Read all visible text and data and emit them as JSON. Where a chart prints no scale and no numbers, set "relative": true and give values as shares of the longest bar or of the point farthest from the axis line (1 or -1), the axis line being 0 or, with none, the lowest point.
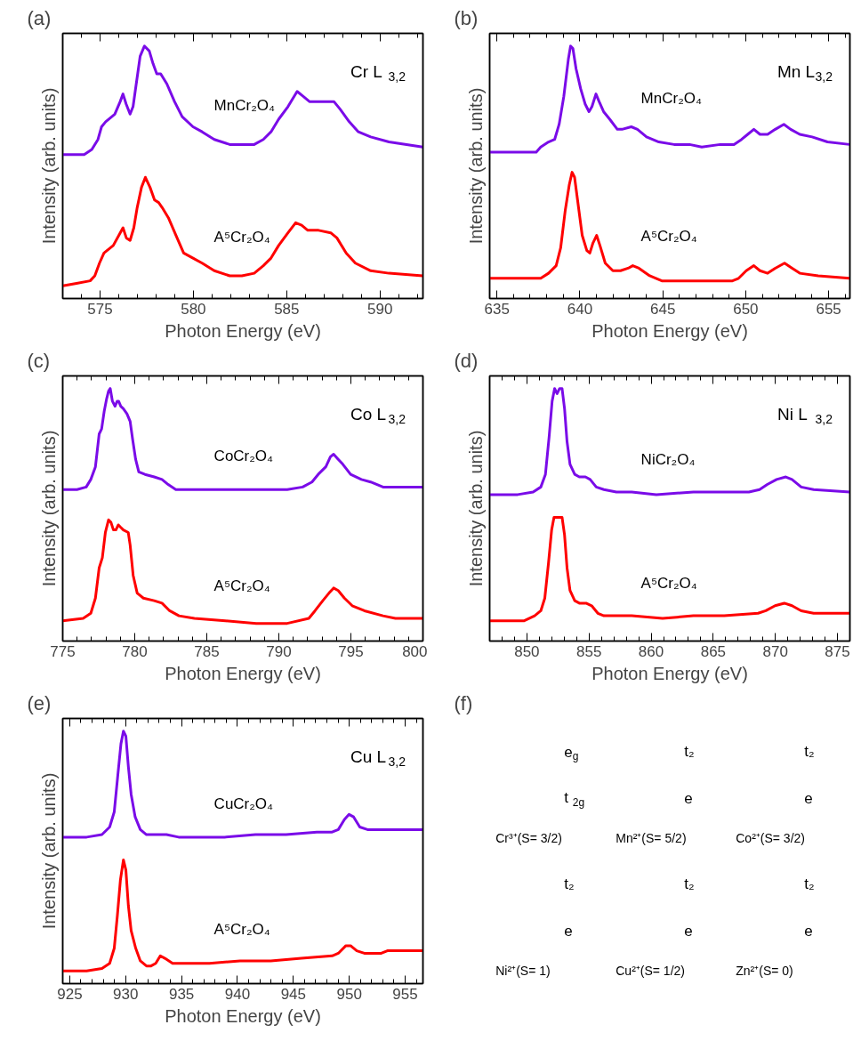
{
  "chart_data": [
    {
      "type": "line",
      "title": "(a)",
      "xlabel": "Photon Energy (eV)",
      "ylabel": "Intensity (arb. units)",
      "relative": true,
      "xlim": [
        573,
        592.3
      ],
      "xticks": [
        575,
        580,
        585,
        590
      ],
      "annotations": [
        "Cr L$_{3,2}$"
      ],
      "series": [
        {
          "name": "MnCr₂O₄",
          "color": "#7a0be8",
          "x": [
            573.0,
            574.15,
            574.56,
            574.89,
            575.08,
            575.3,
            575.79,
            576.08,
            576.23,
            576.4,
            576.61,
            576.77,
            576.94,
            577.15,
            577.38,
            577.64,
            577.84,
            578.04,
            578.25,
            578.58,
            578.99,
            579.4,
            579.98,
            580.47,
            581.12,
            581.95,
            582.77,
            583.26,
            583.75,
            584.16,
            584.57,
            585.07,
            585.56,
            585.89,
            586.22,
            586.87,
            587.53,
            587.86,
            588.35,
            588.84,
            589.5,
            590.48,
            592.29
          ],
          "values": [
            0.57,
            0.57,
            0.59,
            0.63,
            0.68,
            0.7,
            0.73,
            0.78,
            0.81,
            0.77,
            0.73,
            0.76,
            0.85,
            0.96,
            1.0,
            0.98,
            0.93,
            0.89,
            0.89,
            0.85,
            0.78,
            0.72,
            0.68,
            0.66,
            0.63,
            0.61,
            0.61,
            0.61,
            0.63,
            0.66,
            0.71,
            0.76,
            0.82,
            0.8,
            0.78,
            0.78,
            0.78,
            0.75,
            0.7,
            0.66,
            0.64,
            0.62,
            0.6
          ]
        },
        {
          "name": "A⁵Cr₂O₄",
          "color": "#ff0000",
          "x": [
            573.0,
            573.74,
            574.47,
            574.72,
            574.97,
            575.21,
            575.71,
            576.08,
            576.23,
            576.41,
            576.61,
            576.81,
            576.99,
            577.22,
            577.43,
            577.68,
            577.92,
            578.14,
            578.33,
            578.66,
            579.07,
            579.48,
            579.98,
            580.47,
            581.12,
            581.95,
            582.6,
            583.26,
            583.75,
            584.16,
            584.57,
            585.07,
            585.48,
            585.8,
            586.13,
            586.71,
            587.36,
            587.69,
            588.19,
            588.68,
            589.5,
            590.48,
            592.29
          ],
          "values": [
            0.05,
            0.06,
            0.07,
            0.09,
            0.14,
            0.18,
            0.21,
            0.26,
            0.28,
            0.24,
            0.23,
            0.28,
            0.36,
            0.44,
            0.48,
            0.44,
            0.39,
            0.38,
            0.36,
            0.32,
            0.25,
            0.18,
            0.16,
            0.14,
            0.11,
            0.09,
            0.09,
            0.1,
            0.13,
            0.16,
            0.21,
            0.26,
            0.3,
            0.29,
            0.27,
            0.27,
            0.26,
            0.24,
            0.18,
            0.14,
            0.11,
            0.1,
            0.09
          ]
        }
      ]
    },
    {
      "type": "line",
      "title": "(b)",
      "xlabel": "Photon Energy (eV)",
      "ylabel": "Intensity (arb. units)",
      "relative": true,
      "xlim": [
        634.56,
        656.28
      ],
      "xticks": [
        635,
        640,
        645,
        650,
        655
      ],
      "annotations": [
        "Mn L$_{3,2}$"
      ],
      "series": [
        {
          "name": "MnCr₂O₄",
          "color": "#7a0be8",
          "x": [
            634.56,
            637.37,
            637.64,
            638.11,
            638.48,
            638.75,
            639.03,
            639.31,
            639.44,
            639.58,
            639.77,
            640.05,
            640.32,
            640.55,
            640.73,
            640.97,
            641.16,
            641.43,
            641.8,
            642.26,
            642.54,
            643.1,
            643.47,
            644.02,
            644.76,
            645.68,
            646.61,
            647.35,
            648.46,
            649.29,
            649.75,
            650.12,
            650.49,
            650.86,
            651.32,
            651.78,
            652.3,
            652.71,
            653.26,
            654.0,
            654.93,
            656.26
          ],
          "values": [
            0.58,
            0.58,
            0.6,
            0.62,
            0.63,
            0.69,
            0.8,
            0.95,
            1.0,
            0.99,
            0.91,
            0.83,
            0.77,
            0.74,
            0.76,
            0.81,
            0.78,
            0.74,
            0.71,
            0.67,
            0.67,
            0.68,
            0.67,
            0.64,
            0.62,
            0.61,
            0.61,
            0.6,
            0.61,
            0.61,
            0.63,
            0.65,
            0.67,
            0.65,
            0.65,
            0.67,
            0.69,
            0.67,
            0.65,
            0.64,
            0.62,
            0.61
          ]
        },
        {
          "name": "A⁵Cr₂O₄",
          "color": "#ff0000",
          "x": [
            634.56,
            637.64,
            638.11,
            638.57,
            638.84,
            639.12,
            639.36,
            639.53,
            639.68,
            639.86,
            640.14,
            640.42,
            640.6,
            640.79,
            641.01,
            641.21,
            641.53,
            641.99,
            642.45,
            642.91,
            643.19,
            643.56,
            644.21,
            644.94,
            646.05,
            647.53,
            649.2,
            649.57,
            650.03,
            650.49,
            650.86,
            651.32,
            651.78,
            652.34,
            652.8,
            653.26,
            654.37,
            656.26
          ],
          "values": [
            0.08,
            0.08,
            0.1,
            0.13,
            0.2,
            0.35,
            0.45,
            0.5,
            0.48,
            0.39,
            0.25,
            0.19,
            0.18,
            0.22,
            0.25,
            0.21,
            0.14,
            0.11,
            0.11,
            0.12,
            0.13,
            0.12,
            0.09,
            0.07,
            0.07,
            0.07,
            0.07,
            0.08,
            0.11,
            0.13,
            0.11,
            0.1,
            0.12,
            0.14,
            0.12,
            0.1,
            0.09,
            0.08
          ]
        }
      ]
    },
    {
      "type": "line",
      "title": "(c)",
      "xlabel": "Photon Energy (eV)",
      "ylabel": "Intensity (arb. units)",
      "relative": true,
      "xlim": [
        775,
        800
      ],
      "xticks": [
        775,
        780,
        785,
        790,
        795,
        800
      ],
      "annotations": [
        "Co L$_{3,2}$"
      ],
      "series": [
        {
          "name": "CoCr₂O₄",
          "color": "#7a0be8",
          "x": [
            775.0,
            775.99,
            776.63,
            776.95,
            777.27,
            777.53,
            777.7,
            777.88,
            778.05,
            778.18,
            778.3,
            778.45,
            778.63,
            778.78,
            778.88,
            779.03,
            779.21,
            779.46,
            779.68,
            779.85,
            780.06,
            780.28,
            780.71,
            781.35,
            781.89,
            782.32,
            782.85,
            783.71,
            785.21,
            787.36,
            789.08,
            790.58,
            791.65,
            792.3,
            792.73,
            793.26,
            793.58,
            793.8,
            794.12,
            794.44,
            794.98,
            795.73,
            796.37,
            797.23,
            800.0
          ],
          "values": [
            0.6,
            0.6,
            0.61,
            0.64,
            0.69,
            0.82,
            0.84,
            0.91,
            0.96,
            0.99,
            1.0,
            0.95,
            0.93,
            0.95,
            0.95,
            0.93,
            0.92,
            0.9,
            0.87,
            0.8,
            0.72,
            0.67,
            0.66,
            0.65,
            0.64,
            0.62,
            0.6,
            0.6,
            0.6,
            0.6,
            0.6,
            0.6,
            0.61,
            0.63,
            0.66,
            0.69,
            0.73,
            0.74,
            0.72,
            0.7,
            0.66,
            0.64,
            0.63,
            0.61,
            0.61
          ]
        },
        {
          "name": "A⁵Cr₂O₄",
          "color": "#ff0000",
          "x": [
            775.0,
            776.42,
            776.95,
            777.27,
            777.53,
            777.75,
            777.96,
            778.18,
            778.35,
            778.52,
            778.69,
            778.86,
            779.03,
            779.21,
            779.55,
            779.68,
            779.89,
            780.17,
            780.6,
            781.35,
            781.89,
            782.42,
            783.07,
            784.14,
            786.29,
            788.43,
            790.58,
            792.08,
            792.51,
            793.05,
            793.48,
            793.8,
            794.12,
            794.55,
            795.09,
            795.94,
            797.23,
            798.09,
            800.0
          ],
          "values": [
            0.08,
            0.09,
            0.11,
            0.17,
            0.29,
            0.33,
            0.43,
            0.48,
            0.47,
            0.44,
            0.44,
            0.46,
            0.45,
            0.44,
            0.43,
            0.38,
            0.26,
            0.19,
            0.17,
            0.16,
            0.15,
            0.12,
            0.1,
            0.09,
            0.08,
            0.07,
            0.07,
            0.09,
            0.12,
            0.16,
            0.19,
            0.21,
            0.2,
            0.17,
            0.14,
            0.12,
            0.1,
            0.09,
            0.09
          ]
        }
      ]
    },
    {
      "type": "line",
      "title": "(d)",
      "xlabel": "Photon Energy (eV)",
      "ylabel": "Intensity (arb. units)",
      "relative": true,
      "xlim": [
        847,
        876
      ],
      "xticks": [
        850,
        855,
        860,
        865,
        870,
        875
      ],
      "annotations": [
        "Ni L$_{3,2}$"
      ],
      "series": [
        {
          "name": "NiCr₂O₄",
          "color": "#7a0be8",
          "x": [
            847.0,
            849.26,
            850.5,
            851.12,
            851.49,
            851.79,
            852.03,
            852.23,
            852.43,
            852.63,
            852.83,
            853.03,
            853.23,
            853.47,
            853.85,
            854.22,
            854.71,
            855.09,
            855.58,
            856.2,
            857.2,
            858.44,
            860.42,
            863.4,
            865.88,
            867.87,
            868.73,
            869.35,
            870.1,
            870.84,
            871.34,
            872.08,
            873.08,
            876.0
          ],
          "values": [
            0.58,
            0.58,
            0.59,
            0.61,
            0.66,
            0.81,
            0.95,
            1.0,
            0.98,
            1.0,
            1.0,
            0.92,
            0.79,
            0.7,
            0.66,
            0.65,
            0.65,
            0.64,
            0.61,
            0.6,
            0.59,
            0.59,
            0.58,
            0.59,
            0.59,
            0.59,
            0.6,
            0.62,
            0.64,
            0.65,
            0.64,
            0.61,
            0.6,
            0.59
          ]
        },
        {
          "name": "A⁵Cr₂O₄",
          "color": "#ff0000",
          "x": [
            847.0,
            849.75,
            850.62,
            851.12,
            851.44,
            851.74,
            851.99,
            852.18,
            852.38,
            852.58,
            852.83,
            853.03,
            853.23,
            853.47,
            853.85,
            854.22,
            854.76,
            855.21,
            855.71,
            856.2,
            858.44,
            860.92,
            863.4,
            865.88,
            868.61,
            869.23,
            869.98,
            870.72,
            871.34,
            872.08,
            873.08,
            876.0
          ],
          "values": [
            0.08,
            0.08,
            0.1,
            0.12,
            0.17,
            0.31,
            0.44,
            0.49,
            0.49,
            0.49,
            0.49,
            0.42,
            0.29,
            0.2,
            0.16,
            0.15,
            0.15,
            0.14,
            0.11,
            0.1,
            0.1,
            0.09,
            0.1,
            0.1,
            0.11,
            0.12,
            0.14,
            0.15,
            0.14,
            0.12,
            0.11,
            0.11
          ]
        }
      ]
    },
    {
      "type": "line",
      "title": "(e)",
      "xlabel": "Photon Energy (eV)",
      "ylabel": "Intensity (arb. units)",
      "relative": true,
      "xlim": [
        924.37,
        956.59
      ],
      "xticks": [
        925,
        930,
        935,
        940,
        945,
        950,
        955
      ],
      "annotations": [
        "Cu L$_{3,2}$"
      ],
      "series": [
        {
          "name": "CuCr₂O₄",
          "color": "#7a0be8",
          "x": [
            924.37,
            926.51,
            927.88,
            928.57,
            928.98,
            929.31,
            929.58,
            929.8,
            930.02,
            930.24,
            930.49,
            930.85,
            931.31,
            931.86,
            932.55,
            933.1,
            933.65,
            934.74,
            936.12,
            938.86,
            941.61,
            944.35,
            947.1,
            948.47,
            949.02,
            949.57,
            949.98,
            950.39,
            950.94,
            951.63,
            953.14,
            956.59
          ],
          "values": [
            0.58,
            0.58,
            0.59,
            0.62,
            0.68,
            0.83,
            0.95,
            1.0,
            0.98,
            0.86,
            0.75,
            0.66,
            0.61,
            0.59,
            0.59,
            0.59,
            0.59,
            0.58,
            0.58,
            0.58,
            0.59,
            0.59,
            0.6,
            0.6,
            0.61,
            0.65,
            0.67,
            0.66,
            0.62,
            0.61,
            0.61,
            0.61
          ]
        },
        {
          "name": "A⁵Cr₂O₄",
          "color": "#ff0000",
          "x": [
            924.37,
            926.51,
            927.88,
            928.57,
            928.98,
            929.26,
            929.53,
            929.8,
            930.02,
            930.24,
            930.49,
            930.9,
            931.31,
            931.86,
            932.27,
            932.69,
            933.1,
            933.51,
            934.2,
            935.29,
            937.49,
            940.23,
            942.98,
            945.72,
            948.47,
            949.02,
            949.7,
            950.12,
            950.67,
            951.35,
            952.04,
            952.86,
            953.41,
            953.96,
            956.59
          ],
          "values": [
            0.05,
            0.05,
            0.06,
            0.08,
            0.14,
            0.27,
            0.41,
            0.49,
            0.45,
            0.31,
            0.21,
            0.14,
            0.09,
            0.07,
            0.07,
            0.08,
            0.11,
            0.1,
            0.08,
            0.08,
            0.08,
            0.09,
            0.09,
            0.1,
            0.11,
            0.12,
            0.15,
            0.15,
            0.13,
            0.12,
            0.12,
            0.12,
            0.13,
            0.13,
            0.13
          ]
        }
      ]
    },
    {
      "type": "other",
      "title": "(f)",
      "annotations": [
        "e$_{g}$",
        "t$_{2g}$",
        "Cr³⁺(S= 3/2)",
        "t₂",
        "e",
        "Mn²⁺(S= 5/2)",
        "t₂",
        "e",
        "Co²⁺(S= 3/2)",
        "t₂",
        "e",
        "Ni²⁺(S= 1)",
        "t₂",
        "e",
        "Cu²⁺(S= 1/2)",
        "t₂",
        "e",
        "Zn²⁺(S= 0)"
      ]
    }
  ]
}
